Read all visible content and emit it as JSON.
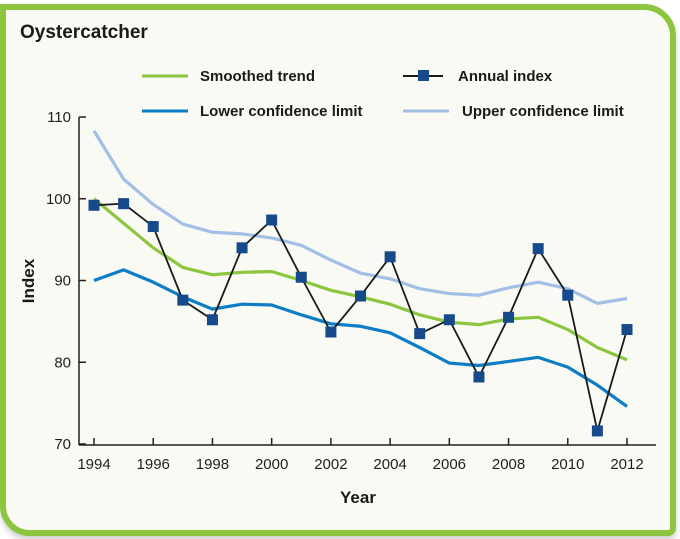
{
  "chart_data": {
    "type": "line",
    "title": "Oystercatcher",
    "xlabel": "Year",
    "ylabel": "Index",
    "xlim": [
      1994,
      2012
    ],
    "ylim": [
      70,
      110
    ],
    "x": [
      1994,
      1995,
      1996,
      1997,
      1998,
      1999,
      2000,
      2001,
      2002,
      2003,
      2004,
      2005,
      2006,
      2007,
      2008,
      2009,
      2010,
      2011,
      2012
    ],
    "x_ticks": [
      "1994",
      "1996",
      "1998",
      "2000",
      "2002",
      "2004",
      "2006",
      "2008",
      "2010",
      "2012"
    ],
    "x_tick_values": [
      1994,
      1996,
      1998,
      2000,
      2002,
      2004,
      2006,
      2008,
      2010,
      2012
    ],
    "y_ticks": [
      "70",
      "80",
      "90",
      "100",
      "110"
    ],
    "y_tick_values": [
      70,
      80,
      90,
      100,
      110
    ],
    "grid": false,
    "legend_position": "top",
    "series": [
      {
        "name": "Upper confidence limit",
        "color": "#a3bfe6",
        "marker": "none",
        "values": [
          108.3,
          102.4,
          99.3,
          96.9,
          95.9,
          95.7,
          95.2,
          94.3,
          92.5,
          90.9,
          90.2,
          89.0,
          88.4,
          88.2,
          89.1,
          89.8,
          89.0,
          87.2,
          87.8
        ]
      },
      {
        "name": "Lower confidence limit",
        "color": "#0d7dc6",
        "marker": "none",
        "values": [
          90.0,
          91.3,
          89.8,
          88.0,
          86.5,
          87.1,
          87.0,
          85.8,
          84.7,
          84.4,
          83.6,
          81.8,
          79.9,
          79.6,
          80.1,
          80.6,
          79.4,
          77.2,
          74.6
        ]
      },
      {
        "name": "Smoothed trend",
        "color": "#8cc63f",
        "marker": "none",
        "values": [
          100.0,
          97.0,
          94.0,
          91.6,
          90.7,
          91.0,
          91.1,
          90.0,
          88.8,
          88.0,
          87.1,
          85.8,
          84.9,
          84.6,
          85.3,
          85.5,
          84.0,
          81.8,
          80.3
        ]
      },
      {
        "name": "Annual index",
        "color": "#1a1a1a",
        "marker_color": "#174a8b",
        "marker": "square",
        "values": [
          99.2,
          99.4,
          96.6,
          87.6,
          85.2,
          94.0,
          97.4,
          90.4,
          83.7,
          88.1,
          92.9,
          83.5,
          85.2,
          78.2,
          85.5,
          93.9,
          88.2,
          71.6,
          84.0
        ]
      }
    ],
    "legend": [
      {
        "label": "Smoothed trend",
        "series": 2
      },
      {
        "label": "Annual index",
        "series": 3
      },
      {
        "label": "Lower confidence limit",
        "series": 1
      },
      {
        "label": "Upper confidence limit",
        "series": 0
      }
    ]
  }
}
